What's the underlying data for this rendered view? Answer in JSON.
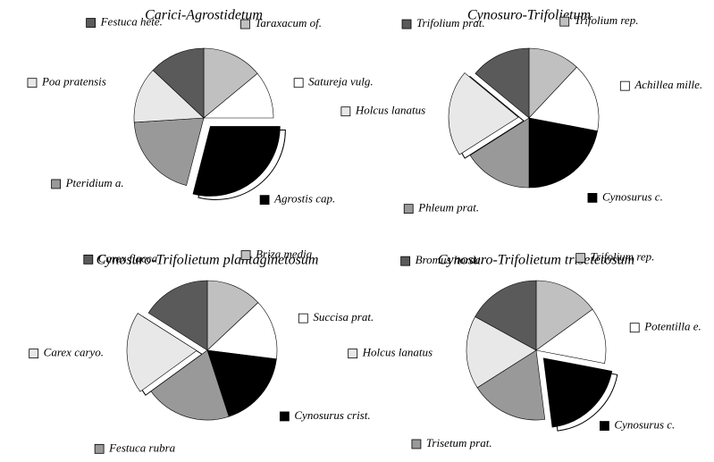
{
  "chart_data": [
    {
      "type": "pie",
      "title": "Carici-Agrostidetum",
      "categories": [
        "Taraxacum of.",
        "Satureja vulg.",
        "Agrostis cap.",
        "Pteridium a.",
        "Poa pratensis",
        "Festuca hete."
      ],
      "values": [
        14,
        11,
        29,
        20,
        13,
        13
      ],
      "colors": [
        "#c0c0c0",
        "#ffffff",
        "#000000",
        "#999999",
        "#e8e8e8",
        "#5a5a5a"
      ],
      "explode": [
        0,
        0,
        1,
        0,
        0,
        0
      ]
    },
    {
      "type": "pie",
      "title": "Cynosuro-Trifolietum",
      "categories": [
        "Trifolium rep.",
        "Achillea mille.",
        "Cynosurus c.",
        "Phleum prat.",
        "Holcus lanatus",
        "Trifolium prat."
      ],
      "values": [
        12,
        16,
        22,
        16,
        20,
        14
      ],
      "colors": [
        "#c0c0c0",
        "#ffffff",
        "#000000",
        "#999999",
        "#e8e8e8",
        "#5a5a5a"
      ],
      "explode": [
        0,
        0,
        0,
        0,
        1,
        0
      ]
    },
    {
      "type": "pie",
      "title": "Cynosuro-Trifolietum plantaginetosum",
      "categories": [
        "Briza media",
        "Succisa prat.",
        "Cynosurus crist.",
        "Festuca rubra",
        "Carex caryo.",
        "Carex flacca"
      ],
      "values": [
        13,
        14,
        18,
        20,
        19,
        16
      ],
      "colors": [
        "#c0c0c0",
        "#ffffff",
        "#000000",
        "#999999",
        "#e8e8e8",
        "#5a5a5a"
      ],
      "explode": [
        0,
        0,
        0,
        0,
        1,
        0
      ]
    },
    {
      "type": "pie",
      "title": "Cynosuro-Trifolietum trisetetosum",
      "categories": [
        "Trifolium rep.",
        "Potentilla e.",
        "Cynosurus c.",
        "Trisetum prat.",
        "Holcus lanatus",
        "Bromus horde."
      ],
      "values": [
        15,
        13,
        20,
        18,
        17,
        17
      ],
      "colors": [
        "#c0c0c0",
        "#ffffff",
        "#000000",
        "#999999",
        "#e8e8e8",
        "#5a5a5a"
      ],
      "explode": [
        0,
        0,
        1,
        0,
        0,
        0
      ]
    }
  ]
}
